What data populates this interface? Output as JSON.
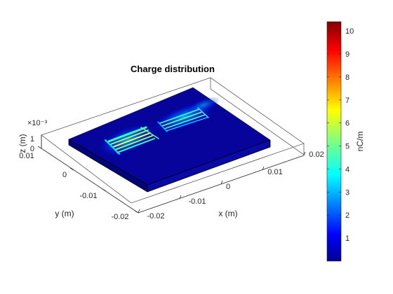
{
  "chart_data": {
    "type": "surface3d",
    "title": "Charge distribution",
    "xlabel": "x (m)",
    "ylabel": "y (m)",
    "zlabel": "z (m)",
    "z_exponent_label": "×10⁻³",
    "x_ticks": [
      "-0.02",
      "-0.01",
      "0",
      "0.01",
      "0.02"
    ],
    "y_ticks": [
      "-0.02",
      "-0.01",
      "0",
      "0.01"
    ],
    "z_ticks": [
      "0",
      "1"
    ],
    "xlim": [
      -0.02,
      0.02
    ],
    "ylim": [
      -0.02,
      0.01
    ],
    "zlim": [
      0,
      0.001
    ],
    "colorbar": {
      "label": "nC/m",
      "range": [
        0,
        10.4
      ],
      "ticks": [
        "1",
        "2",
        "3",
        "4",
        "5",
        "6",
        "7",
        "8",
        "9",
        "10"
      ],
      "colormap": "jet"
    },
    "grid": false
  }
}
